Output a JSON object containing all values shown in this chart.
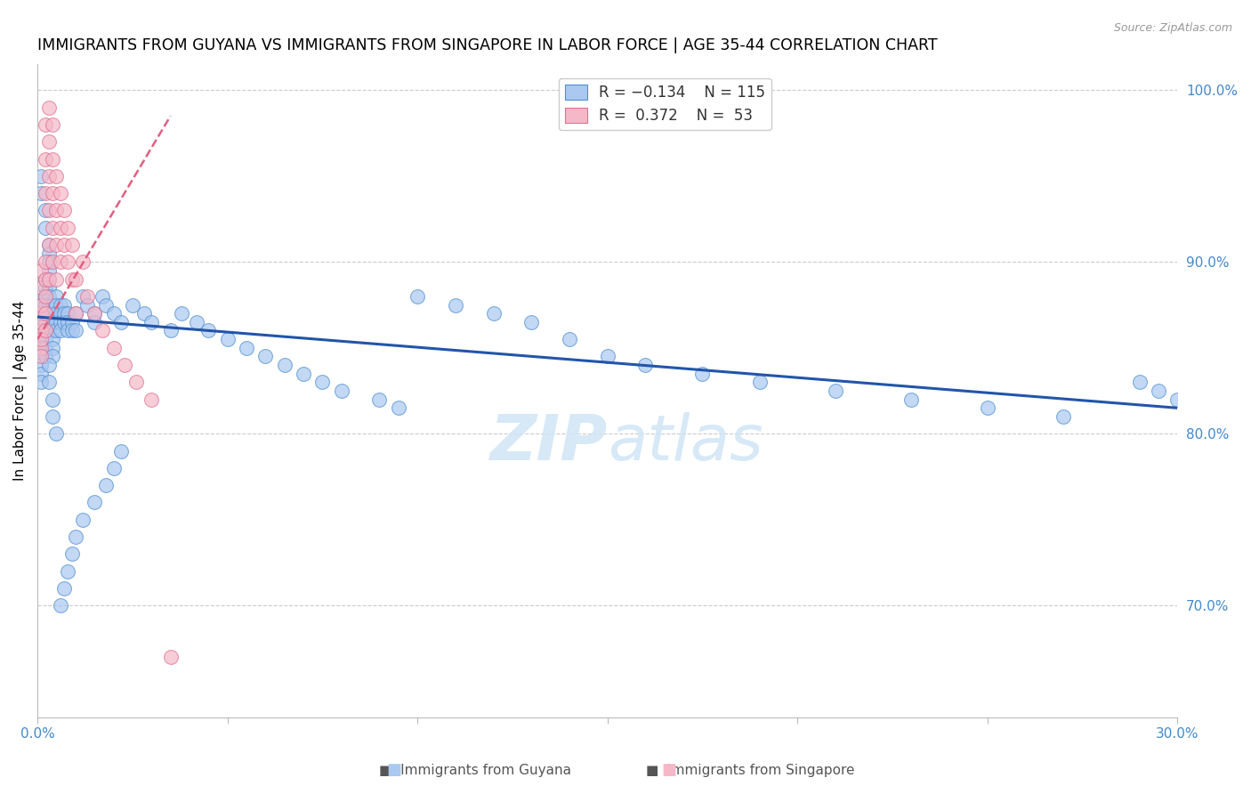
{
  "title": "IMMIGRANTS FROM GUYANA VS IMMIGRANTS FROM SINGAPORE IN LABOR FORCE | AGE 35-44 CORRELATION CHART",
  "source": "Source: ZipAtlas.com",
  "ylabel": "In Labor Force | Age 35-44",
  "xlim": [
    0.0,
    0.3
  ],
  "ylim": [
    0.635,
    1.015
  ],
  "right_yticks": [
    0.7,
    0.8,
    0.9,
    1.0
  ],
  "right_ytick_labels": [
    "70.0%",
    "80.0%",
    "90.0%",
    "100.0%"
  ],
  "blue_color": "#aac8f0",
  "blue_edge_color": "#5090d0",
  "blue_line_color": "#2255aa",
  "pink_color": "#f5b8c8",
  "pink_edge_color": "#e07090",
  "pink_line_color": "#e06080",
  "watermark_color": "#d0e4f5",
  "guyana_x": [
    0.001,
    0.001,
    0.001,
    0.001,
    0.001,
    0.001,
    0.001,
    0.001,
    0.001,
    0.001,
    0.002,
    0.002,
    0.002,
    0.002,
    0.002,
    0.002,
    0.002,
    0.002,
    0.002,
    0.002,
    0.003,
    0.003,
    0.003,
    0.003,
    0.003,
    0.003,
    0.003,
    0.003,
    0.003,
    0.004,
    0.004,
    0.004,
    0.004,
    0.004,
    0.004,
    0.004,
    0.005,
    0.005,
    0.005,
    0.005,
    0.005,
    0.006,
    0.006,
    0.006,
    0.006,
    0.007,
    0.007,
    0.007,
    0.008,
    0.008,
    0.008,
    0.009,
    0.009,
    0.01,
    0.01,
    0.012,
    0.013,
    0.015,
    0.015,
    0.017,
    0.018,
    0.02,
    0.022,
    0.025,
    0.028,
    0.03,
    0.035,
    0.038,
    0.042,
    0.045,
    0.05,
    0.055,
    0.06,
    0.065,
    0.07,
    0.075,
    0.08,
    0.09,
    0.095,
    0.1,
    0.11,
    0.12,
    0.13,
    0.14,
    0.15,
    0.16,
    0.175,
    0.19,
    0.21,
    0.23,
    0.25,
    0.27,
    0.29,
    0.295,
    0.3,
    0.001,
    0.001,
    0.002,
    0.002,
    0.003,
    0.003,
    0.004,
    0.004,
    0.005,
    0.006,
    0.007,
    0.008,
    0.009,
    0.01,
    0.012,
    0.015,
    0.018,
    0.02,
    0.022
  ],
  "guyana_y": [
    0.87,
    0.88,
    0.86,
    0.855,
    0.85,
    0.845,
    0.84,
    0.835,
    0.83,
    0.875,
    0.89,
    0.885,
    0.88,
    0.875,
    0.87,
    0.865,
    0.86,
    0.855,
    0.85,
    0.845,
    0.91,
    0.905,
    0.9,
    0.895,
    0.89,
    0.885,
    0.88,
    0.875,
    0.87,
    0.875,
    0.87,
    0.865,
    0.86,
    0.855,
    0.85,
    0.845,
    0.88,
    0.875,
    0.87,
    0.865,
    0.86,
    0.875,
    0.87,
    0.865,
    0.86,
    0.875,
    0.87,
    0.865,
    0.87,
    0.865,
    0.86,
    0.865,
    0.86,
    0.87,
    0.86,
    0.88,
    0.875,
    0.87,
    0.865,
    0.88,
    0.875,
    0.87,
    0.865,
    0.875,
    0.87,
    0.865,
    0.86,
    0.87,
    0.865,
    0.86,
    0.855,
    0.85,
    0.845,
    0.84,
    0.835,
    0.83,
    0.825,
    0.82,
    0.815,
    0.88,
    0.875,
    0.87,
    0.865,
    0.855,
    0.845,
    0.84,
    0.835,
    0.83,
    0.825,
    0.82,
    0.815,
    0.81,
    0.83,
    0.825,
    0.82,
    0.95,
    0.94,
    0.93,
    0.92,
    0.84,
    0.83,
    0.82,
    0.81,
    0.8,
    0.7,
    0.71,
    0.72,
    0.73,
    0.74,
    0.75,
    0.76,
    0.77,
    0.78,
    0.79
  ],
  "singapore_x": [
    0.001,
    0.001,
    0.001,
    0.001,
    0.001,
    0.001,
    0.001,
    0.001,
    0.001,
    0.002,
    0.002,
    0.002,
    0.002,
    0.002,
    0.002,
    0.002,
    0.002,
    0.003,
    0.003,
    0.003,
    0.003,
    0.003,
    0.003,
    0.004,
    0.004,
    0.004,
    0.004,
    0.004,
    0.005,
    0.005,
    0.005,
    0.005,
    0.006,
    0.006,
    0.006,
    0.007,
    0.007,
    0.008,
    0.008,
    0.009,
    0.009,
    0.01,
    0.01,
    0.012,
    0.013,
    0.015,
    0.017,
    0.02,
    0.023,
    0.026,
    0.03,
    0.035
  ],
  "singapore_y": [
    0.87,
    0.86,
    0.85,
    0.895,
    0.885,
    0.875,
    0.865,
    0.855,
    0.845,
    0.98,
    0.96,
    0.94,
    0.9,
    0.89,
    0.88,
    0.87,
    0.86,
    0.99,
    0.97,
    0.95,
    0.93,
    0.91,
    0.89,
    0.98,
    0.96,
    0.94,
    0.92,
    0.9,
    0.95,
    0.93,
    0.91,
    0.89,
    0.94,
    0.92,
    0.9,
    0.93,
    0.91,
    0.92,
    0.9,
    0.91,
    0.89,
    0.89,
    0.87,
    0.9,
    0.88,
    0.87,
    0.86,
    0.85,
    0.84,
    0.83,
    0.82,
    0.67
  ],
  "guyana_trend_x": [
    0.0,
    0.3
  ],
  "guyana_trend_y": [
    0.868,
    0.815
  ],
  "singapore_trend_x": [
    0.0,
    0.035
  ],
  "singapore_trend_y": [
    0.855,
    0.985
  ]
}
